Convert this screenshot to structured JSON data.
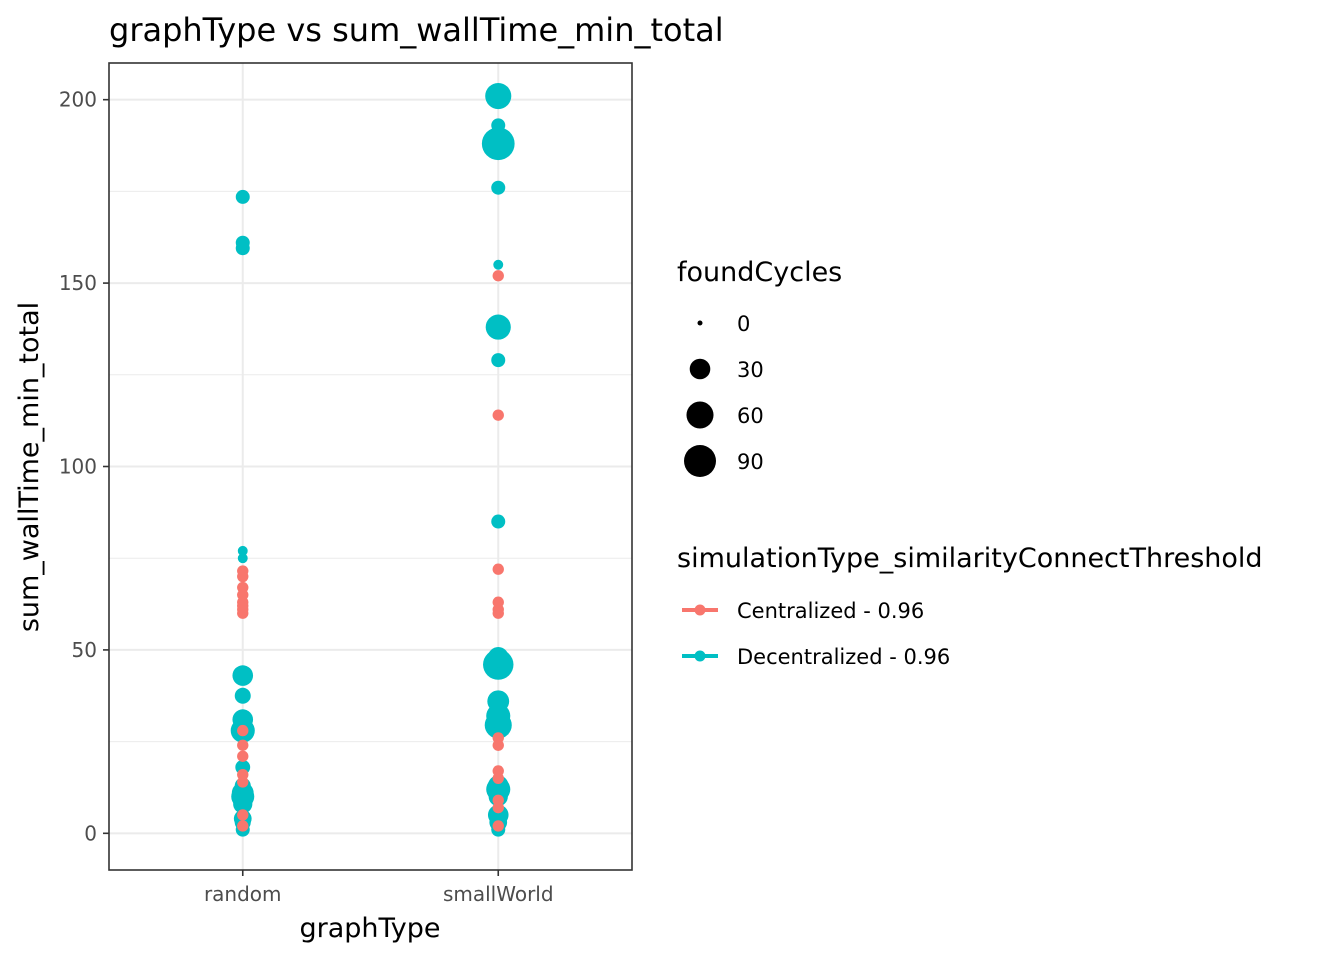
{
  "chart_data": {
    "type": "scatter",
    "title": "graphType  vs  sum_wallTime_min_total",
    "xlabel": "graphType",
    "ylabel": "sum_wallTime_min_total",
    "categories": [
      "random",
      "smallWorld"
    ],
    "ylim": [
      -10,
      210
    ],
    "yticks": [
      0,
      50,
      100,
      150,
      200
    ],
    "grid": true,
    "size_legend": {
      "title": "foundCycles",
      "entries": [
        {
          "label": "0",
          "value": 0
        },
        {
          "label": "30",
          "value": 30
        },
        {
          "label": "60",
          "value": 60
        },
        {
          "label": "90",
          "value": 90
        }
      ]
    },
    "color_legend": {
      "title": "simulationType_similarityConnectThreshold",
      "placement": "right"
    },
    "series": [
      {
        "name": "Centralized - 0.96",
        "color": "#F8766D",
        "points": [
          {
            "x": "random",
            "y": 71.5,
            "size": 5
          },
          {
            "x": "random",
            "y": 70,
            "size": 5
          },
          {
            "x": "random",
            "y": 67,
            "size": 5
          },
          {
            "x": "random",
            "y": 65,
            "size": 5
          },
          {
            "x": "random",
            "y": 63,
            "size": 5
          },
          {
            "x": "random",
            "y": 62,
            "size": 5
          },
          {
            "x": "random",
            "y": 61,
            "size": 5
          },
          {
            "x": "random",
            "y": 60,
            "size": 5
          },
          {
            "x": "random",
            "y": 28,
            "size": 5
          },
          {
            "x": "random",
            "y": 24,
            "size": 5
          },
          {
            "x": "random",
            "y": 21,
            "size": 5
          },
          {
            "x": "random",
            "y": 16,
            "size": 5
          },
          {
            "x": "random",
            "y": 14,
            "size": 5
          },
          {
            "x": "random",
            "y": 5,
            "size": 5
          },
          {
            "x": "random",
            "y": 2,
            "size": 5
          },
          {
            "x": "smallWorld",
            "y": 152,
            "size": 5
          },
          {
            "x": "smallWorld",
            "y": 114,
            "size": 5
          },
          {
            "x": "smallWorld",
            "y": 72,
            "size": 5
          },
          {
            "x": "smallWorld",
            "y": 63,
            "size": 5
          },
          {
            "x": "smallWorld",
            "y": 61,
            "size": 5
          },
          {
            "x": "smallWorld",
            "y": 60,
            "size": 5
          },
          {
            "x": "smallWorld",
            "y": 26,
            "size": 5
          },
          {
            "x": "smallWorld",
            "y": 24,
            "size": 5
          },
          {
            "x": "smallWorld",
            "y": 17,
            "size": 5
          },
          {
            "x": "smallWorld",
            "y": 15,
            "size": 5
          },
          {
            "x": "smallWorld",
            "y": 9,
            "size": 5
          },
          {
            "x": "smallWorld",
            "y": 7,
            "size": 5
          },
          {
            "x": "smallWorld",
            "y": 2,
            "size": 5
          }
        ]
      },
      {
        "name": "Decentralized - 0.96",
        "color": "#00BFC4",
        "points": [
          {
            "x": "random",
            "y": 173.5,
            "size": 10
          },
          {
            "x": "random",
            "y": 161,
            "size": 10
          },
          {
            "x": "random",
            "y": 159.5,
            "size": 10
          },
          {
            "x": "random",
            "y": 77,
            "size": 3
          },
          {
            "x": "random",
            "y": 75,
            "size": 3
          },
          {
            "x": "random",
            "y": 43,
            "size": 30
          },
          {
            "x": "random",
            "y": 37.5,
            "size": 15
          },
          {
            "x": "random",
            "y": 31,
            "size": 30
          },
          {
            "x": "random",
            "y": 28,
            "size": 45
          },
          {
            "x": "random",
            "y": 18,
            "size": 12
          },
          {
            "x": "random",
            "y": 13,
            "size": 15
          },
          {
            "x": "random",
            "y": 11,
            "size": 35
          },
          {
            "x": "random",
            "y": 10,
            "size": 40
          },
          {
            "x": "random",
            "y": 8,
            "size": 25
          },
          {
            "x": "random",
            "y": 4,
            "size": 20
          },
          {
            "x": "random",
            "y": 3,
            "size": 15
          },
          {
            "x": "random",
            "y": 1,
            "size": 10
          },
          {
            "x": "smallWorld",
            "y": 201,
            "size": 55
          },
          {
            "x": "smallWorld",
            "y": 193,
            "size": 10
          },
          {
            "x": "smallWorld",
            "y": 188,
            "size": 95
          },
          {
            "x": "smallWorld",
            "y": 176,
            "size": 10
          },
          {
            "x": "smallWorld",
            "y": 155,
            "size": 3
          },
          {
            "x": "smallWorld",
            "y": 138,
            "size": 50
          },
          {
            "x": "smallWorld",
            "y": 129,
            "size": 10
          },
          {
            "x": "smallWorld",
            "y": 85,
            "size": 10
          },
          {
            "x": "smallWorld",
            "y": 48,
            "size": 30
          },
          {
            "x": "smallWorld",
            "y": 46,
            "size": 80
          },
          {
            "x": "smallWorld",
            "y": 36,
            "size": 35
          },
          {
            "x": "smallWorld",
            "y": 32,
            "size": 45
          },
          {
            "x": "smallWorld",
            "y": 29.5,
            "size": 60
          },
          {
            "x": "smallWorld",
            "y": 13,
            "size": 30
          },
          {
            "x": "smallWorld",
            "y": 12,
            "size": 45
          },
          {
            "x": "smallWorld",
            "y": 10,
            "size": 25
          },
          {
            "x": "smallWorld",
            "y": 5,
            "size": 30
          },
          {
            "x": "smallWorld",
            "y": 3,
            "size": 20
          },
          {
            "x": "smallWorld",
            "y": 1,
            "size": 10
          }
        ]
      }
    ]
  }
}
